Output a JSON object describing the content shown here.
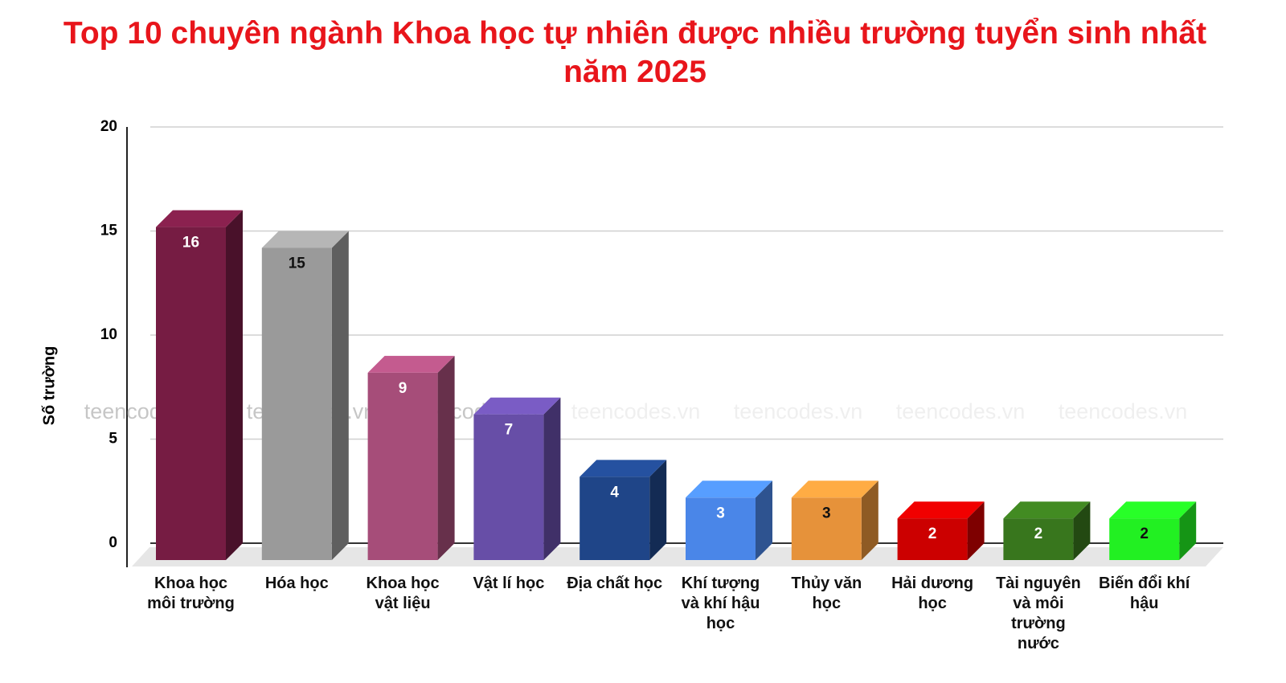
{
  "chart_data": {
    "type": "bar3d",
    "title": "Top 10 chuyên ngành Khoa học tự nhiên được nhiều trường tuyển sinh nhất năm 2025",
    "y_label": "Số trường",
    "watermark": "teencodes.vn",
    "categories": [
      "Khoa học môi trường",
      "Hóa học",
      "Khoa học vật liệu",
      "Vật lí học",
      "Địa chất học",
      "Khí tượng và khí hậu học",
      "Thủy văn học",
      "Hải dương học",
      "Tài nguyên và môi trường nước",
      "Biến đổi khí hậu"
    ],
    "values": [
      16,
      15,
      9,
      7,
      4,
      3,
      3,
      2,
      2,
      2
    ],
    "colors": [
      "#761c43",
      "#9a9a9a",
      "#a64d79",
      "#674ea7",
      "#1f4588",
      "#4a86e8",
      "#e6923a",
      "#cc0000",
      "#38761d",
      "#22f022"
    ],
    "ylim": [
      0,
      20
    ],
    "yticks": [
      0,
      5,
      10,
      15,
      20
    ],
    "grid": true
  }
}
